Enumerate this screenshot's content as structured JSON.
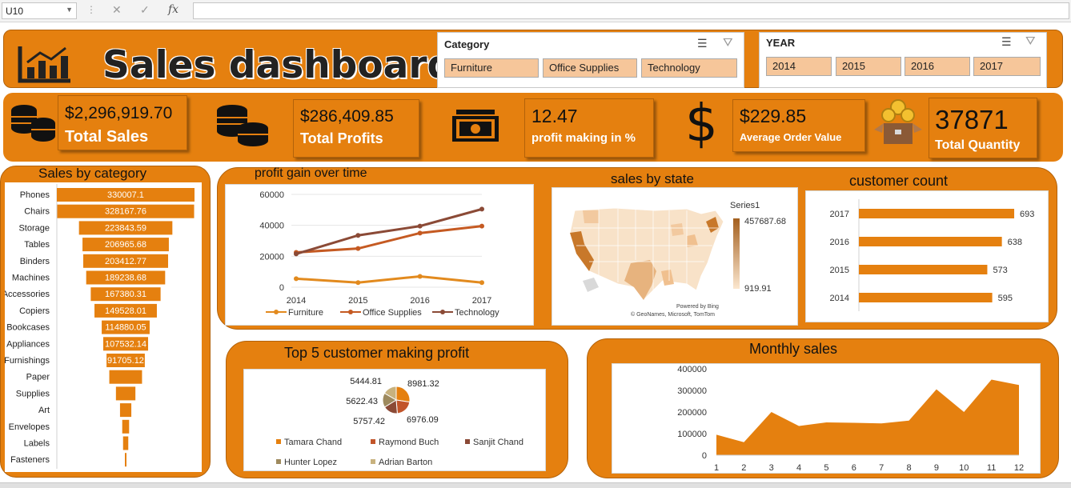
{
  "formula_bar": {
    "cell_ref": "U10",
    "fx": "fx"
  },
  "dashboard": {
    "title": "Sales dashboard"
  },
  "category_slicer": {
    "title": "Category",
    "items": [
      "Furniture",
      "Office Supplies",
      "Technology"
    ]
  },
  "year_slicer": {
    "title": "YEAR",
    "items": [
      "2014",
      "2015",
      "2016",
      "2017"
    ]
  },
  "kpis": [
    {
      "value": "$2,296,919.70",
      "label": "Total Sales",
      "icon": "coins-icon"
    },
    {
      "value": "$286,409.85",
      "label": "Total Profits",
      "icon": "coin-stacks-icon"
    },
    {
      "value": "12.47",
      "label": "profit making in %",
      "icon": "cash-icon"
    },
    {
      "value": "$229.85",
      "label": "Average Order Value",
      "icon": "dollar-icon"
    },
    {
      "value": "37871",
      "label": "Total Quantity",
      "icon": "box-coins-icon"
    }
  ],
  "colors": {
    "orange": "#e5800f",
    "furniture": "#e28a1e",
    "office": "#c55a22",
    "technology": "#8b4a36"
  },
  "chart_data": [
    {
      "id": "sales_by_category",
      "type": "bar",
      "title": "Sales by category",
      "categories": [
        "Phones",
        "Chairs",
        "Storage",
        "Tables",
        "Binders",
        "Machines",
        "Accessories",
        "Copiers",
        "Bookcases",
        "Appliances",
        "Furnishings",
        "Paper",
        "Supplies",
        "Art",
        "Envelopes",
        "Labels",
        "Fasteners"
      ],
      "values": [
        330007.1,
        328167.76,
        223843.59,
        206965.68,
        203412.77,
        189238.68,
        167380.31,
        149528.01,
        114880.05,
        107532.14,
        91705.12,
        78479,
        46673,
        27119,
        16476,
        12486,
        3024
      ],
      "labels": [
        "330007.1",
        "328167.76",
        "223843.59",
        "206965.68",
        "203412.77",
        "189238.68",
        "167380.31",
        "149528.01",
        "114880.05",
        "107532.14",
        "91705.12",
        "",
        "",
        "",
        "",
        "",
        ""
      ]
    },
    {
      "id": "profit_over_time",
      "type": "line",
      "title": "profit gain over time",
      "categories": [
        "2014",
        "2015",
        "2016",
        "2017"
      ],
      "ylim": [
        0,
        60000
      ],
      "yticks": [
        "0",
        "20000",
        "40000",
        "60000"
      ],
      "series": [
        {
          "name": "Furniture",
          "values": [
            5500,
            3000,
            7000,
            3000
          ]
        },
        {
          "name": "Office Supplies",
          "values": [
            22500,
            25000,
            35000,
            39500
          ]
        },
        {
          "name": "Technology",
          "values": [
            21500,
            33500,
            39500,
            50500
          ]
        }
      ]
    },
    {
      "id": "sales_by_state",
      "type": "heatmap",
      "title": "sales by state",
      "legend_title": "Series1",
      "max_label": "457687.68",
      "min_label": "919.91",
      "attribution_1": "Powered by Bing",
      "attribution_2": "© GeoNames, Microsoft, TomTom"
    },
    {
      "id": "customer_count",
      "type": "bar",
      "title": "customer count",
      "categories": [
        "2017",
        "2016",
        "2015",
        "2014"
      ],
      "values": [
        693,
        638,
        573,
        595
      ]
    },
    {
      "id": "top5_customers",
      "type": "pie",
      "title": "Top 5 customer making profit",
      "series": [
        {
          "name": "Tamara Chand",
          "value": 8981.32,
          "label": "8981.32"
        },
        {
          "name": "Raymond Buch",
          "value": 6976.09,
          "label": "6976.09"
        },
        {
          "name": "Sanjit Chand",
          "value": 5757.42,
          "label": "5757.42"
        },
        {
          "name": "Hunter Lopez",
          "value": 5622.43,
          "label": "5622.43"
        },
        {
          "name": "Adrian Barton",
          "value": 5444.81,
          "label": "5444.81"
        }
      ]
    },
    {
      "id": "monthly_sales",
      "type": "area",
      "title": "Monthly sales",
      "categories": [
        "1",
        "2",
        "3",
        "4",
        "5",
        "6",
        "7",
        "8",
        "9",
        "10",
        "11",
        "12"
      ],
      "values": [
        95000,
        60000,
        200000,
        135000,
        152000,
        150000,
        147000,
        160000,
        305000,
        200000,
        350000,
        325000
      ],
      "ylim": [
        0,
        400000
      ],
      "yticks": [
        "0",
        "100000",
        "200000",
        "300000",
        "400000"
      ]
    }
  ]
}
